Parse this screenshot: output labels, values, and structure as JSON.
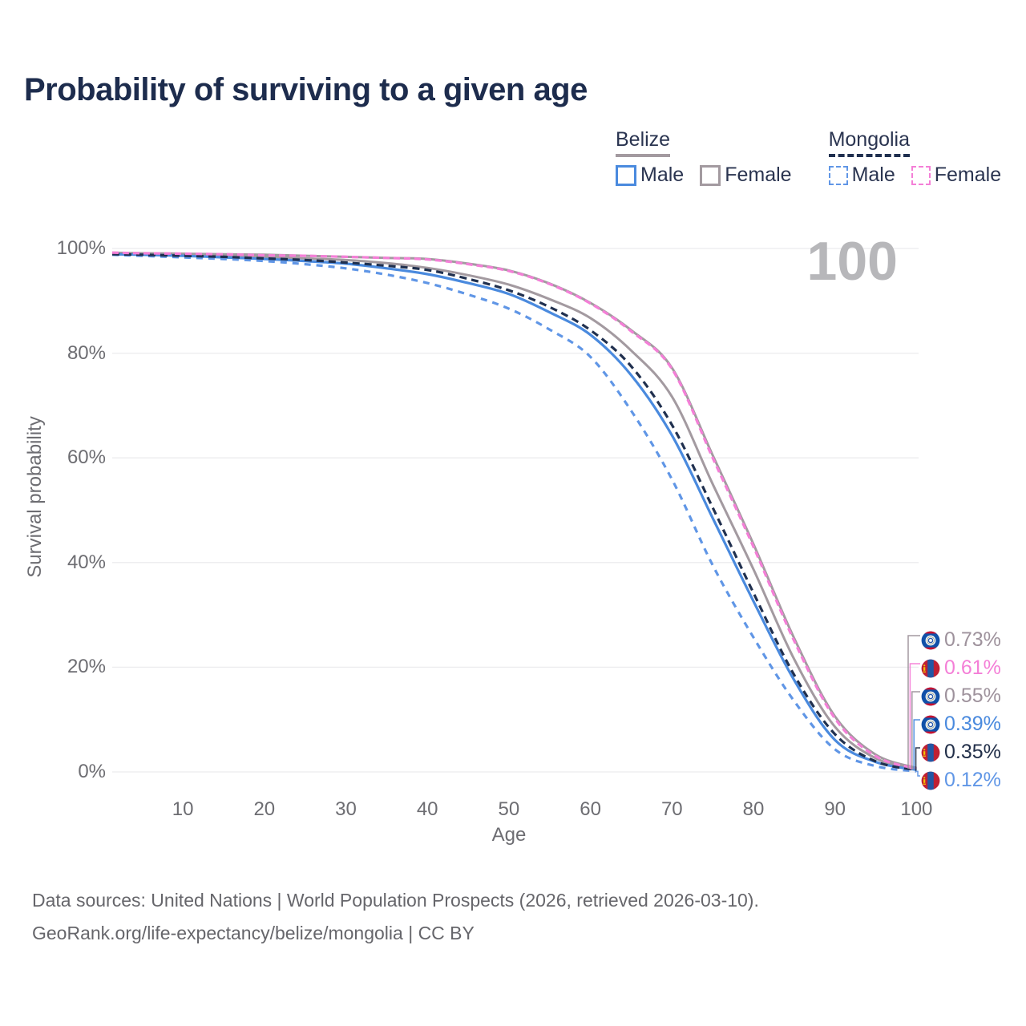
{
  "title": "Probability of surviving to a given age",
  "watermark": "100",
  "legend": {
    "groups": [
      {
        "country": "Belize",
        "line_style": "solid",
        "underline_color": "#a39aa0",
        "items": [
          {
            "label": "Male",
            "color": "#4a8ade",
            "dash": false
          },
          {
            "label": "Female",
            "color": "#a39aa0",
            "dash": false
          }
        ]
      },
      {
        "country": "Mongolia",
        "line_style": "dashed",
        "underline_color": "#20304f",
        "items": [
          {
            "label": "Male",
            "color": "#6096e6",
            "dash": true
          },
          {
            "label": "Female",
            "color": "#f47fd7",
            "dash": true
          }
        ]
      }
    ]
  },
  "axes": {
    "y_title": "Survival probability",
    "x_title": "Age",
    "y_ticks": [
      {
        "label": "100%",
        "value": 100
      },
      {
        "label": "80%",
        "value": 80
      },
      {
        "label": "60%",
        "value": 60
      },
      {
        "label": "40%",
        "value": 40
      },
      {
        "label": "20%",
        "value": 20
      },
      {
        "label": "0%",
        "value": 0
      }
    ],
    "x_ticks": [
      {
        "label": "10",
        "value": 10
      },
      {
        "label": "20",
        "value": 20
      },
      {
        "label": "30",
        "value": 30
      },
      {
        "label": "40",
        "value": 40
      },
      {
        "label": "50",
        "value": 50
      },
      {
        "label": "60",
        "value": 60
      },
      {
        "label": "70",
        "value": 70
      },
      {
        "label": "80",
        "value": 80
      },
      {
        "label": "90",
        "value": 90
      },
      {
        "label": "100",
        "value": 100
      }
    ]
  },
  "chart_data": {
    "type": "line",
    "xlabel": "Age",
    "ylabel": "Survival probability",
    "xlim": [
      1,
      100
    ],
    "ylim": [
      0,
      100
    ],
    "grid": "horizontal",
    "hover_age": 100,
    "x": [
      1,
      5,
      10,
      15,
      20,
      25,
      30,
      35,
      40,
      45,
      50,
      55,
      60,
      65,
      70,
      75,
      80,
      85,
      90,
      95,
      100
    ],
    "series": [
      {
        "name": "Belize Female",
        "country": "Belize",
        "sex": "Female",
        "color": "#a39aa0",
        "dash": null,
        "width": 3,
        "values": [
          99.2,
          99.1,
          99.0,
          98.9,
          98.8,
          98.6,
          98.4,
          98.2,
          98.0,
          97.1,
          95.8,
          93.3,
          89.6,
          84.4,
          77.2,
          60.5,
          43.5,
          25.5,
          10.6,
          3.3,
          0.73
        ]
      },
      {
        "name": "Belize Both sexes",
        "country": "Belize",
        "sex": "Both",
        "color": "#a39aa0",
        "dash": null,
        "width": 3,
        "values": [
          99.0,
          98.9,
          98.8,
          98.6,
          98.4,
          98.1,
          97.8,
          97.2,
          96.3,
          94.9,
          93.1,
          90.3,
          86.7,
          80.5,
          71.7,
          55.0,
          38.7,
          21.5,
          8.6,
          2.6,
          0.55
        ]
      },
      {
        "name": "Belize Male",
        "country": "Belize",
        "sex": "Male",
        "color": "#4a8ade",
        "dash": null,
        "width": 3.2,
        "values": [
          98.9,
          98.8,
          98.6,
          98.3,
          98.0,
          97.6,
          97.1,
          96.2,
          95.1,
          93.4,
          91.3,
          87.8,
          83.5,
          75.8,
          64.3,
          48.5,
          32.6,
          17.5,
          6.1,
          1.9,
          0.39
        ]
      },
      {
        "name": "Mongolia Male",
        "country": "Mongolia",
        "sex": "Male",
        "color": "#6096e6",
        "dash": "8 7",
        "width": 3.2,
        "values": [
          98.8,
          98.6,
          98.3,
          98.0,
          97.6,
          97.0,
          96.2,
          95.0,
          93.4,
          91.2,
          88.5,
          84.5,
          79.3,
          69.0,
          55.9,
          39.5,
          25.7,
          13.5,
          4.3,
          1.1,
          0.12
        ]
      },
      {
        "name": "Mongolia Both sexes",
        "country": "Mongolia",
        "sex": "Both",
        "color": "#20304f",
        "dash": "9 6",
        "width": 3.2,
        "values": [
          98.9,
          98.8,
          98.6,
          98.4,
          98.1,
          97.8,
          97.3,
          96.7,
          95.9,
          94.2,
          92.0,
          88.8,
          84.4,
          77.5,
          66.3,
          50.5,
          34.2,
          18.5,
          7.2,
          2.0,
          0.35
        ]
      },
      {
        "name": "Mongolia Female",
        "country": "Mongolia",
        "sex": "Female",
        "color": "#f47fd7",
        "dash": "8 5",
        "width": 3.2,
        "values": [
          99.2,
          99.1,
          99.0,
          98.9,
          98.7,
          98.6,
          98.4,
          98.2,
          97.9,
          97.0,
          95.7,
          93.2,
          89.5,
          84.2,
          77.0,
          60.0,
          43.0,
          25.0,
          10.2,
          3.0,
          0.61
        ]
      }
    ]
  },
  "end_labels": [
    {
      "text": "0.73%",
      "value": 0.73,
      "color": "#9e929c",
      "flag": "belize",
      "series": "Belize Female"
    },
    {
      "text": "0.61%",
      "value": 0.61,
      "color": "#f47fd7",
      "flag": "mongolia",
      "series": "Mongolia Female"
    },
    {
      "text": "0.55%",
      "value": 0.55,
      "color": "#9e929c",
      "flag": "belize",
      "series": "Belize Both sexes"
    },
    {
      "text": "0.39%",
      "value": 0.39,
      "color": "#4a8ade",
      "flag": "belize",
      "series": "Belize Male"
    },
    {
      "text": "0.35%",
      "value": 0.35,
      "color": "#222f49",
      "flag": "mongolia",
      "series": "Mongolia Both sexes"
    },
    {
      "text": "0.12%",
      "value": 0.12,
      "color": "#6096e6",
      "flag": "mongolia",
      "series": "Mongolia Male"
    }
  ],
  "flag_colors": {
    "belize": {
      "field": "#1050a8",
      "stripe": "#c8102e",
      "disc": "#ffffff",
      "ring": "#9aa79d",
      "center": "#2b5cad"
    },
    "mongolia": {
      "red": "#bf2034",
      "blue": "#2257a5",
      "soyombo": "#f4c400"
    }
  },
  "footer": {
    "line1": "Data sources: United Nations | World Population Prospects (2026, retrieved 2026-03-10).",
    "line2": "GeoRank.org/life-expectancy/belize/mongolia | CC BY"
  }
}
